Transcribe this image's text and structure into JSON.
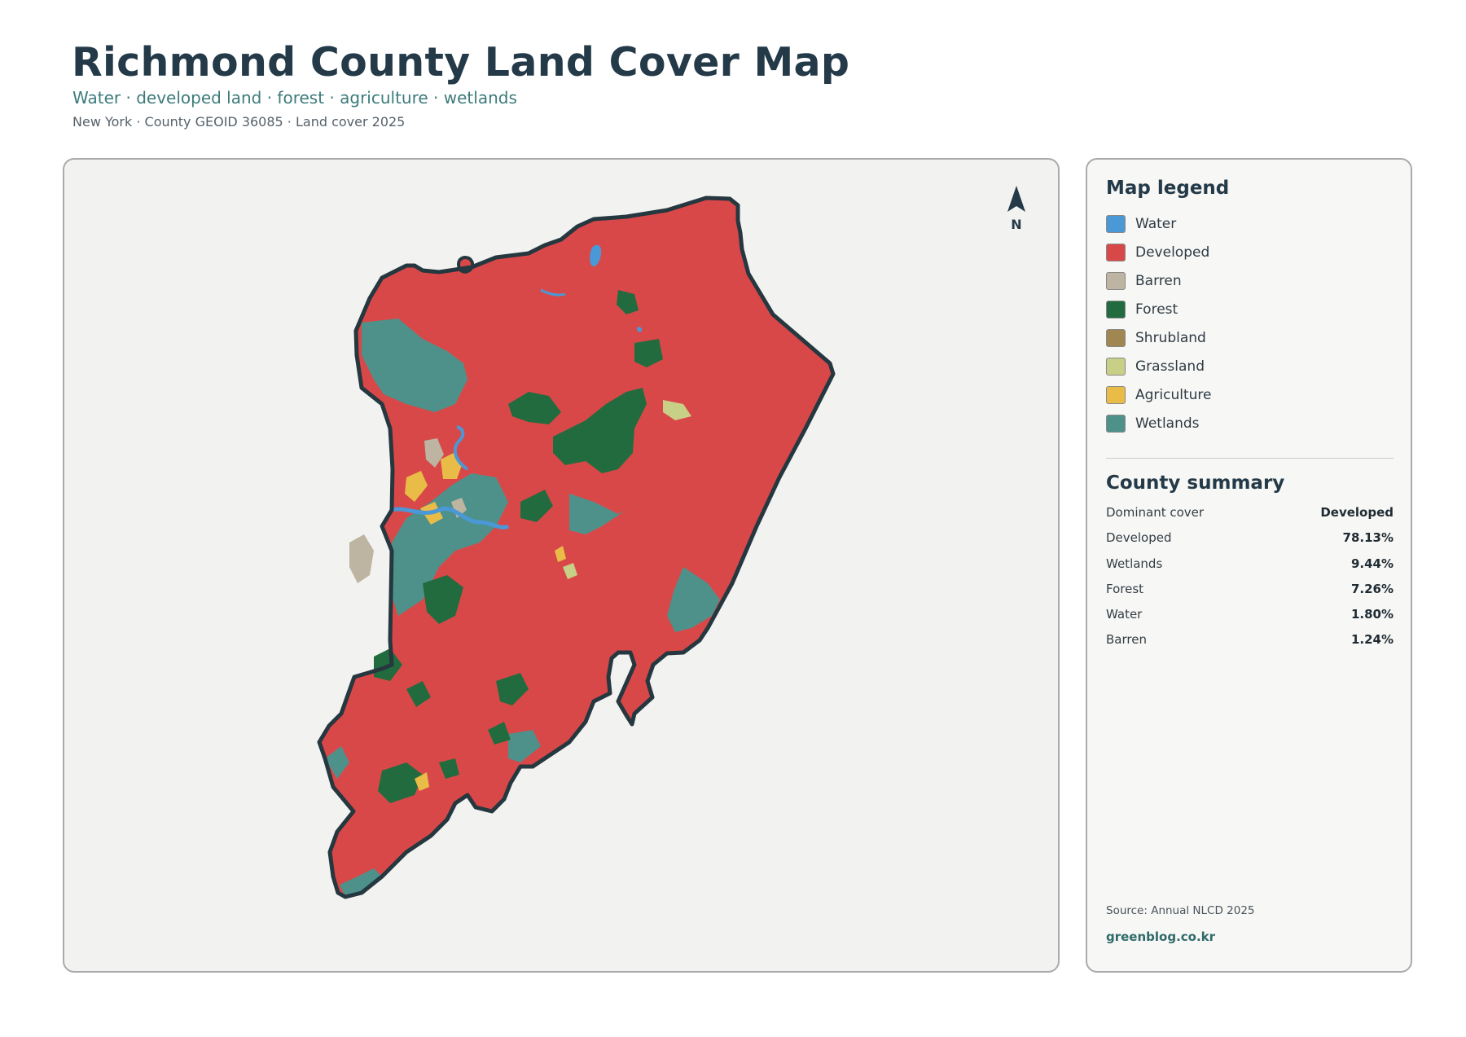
{
  "header": {
    "title": "Richmond County Land Cover Map",
    "subtitle": "Water · developed land · forest · agriculture · wetlands",
    "meta": "New York · County GEOID 36085 · Land cover 2025"
  },
  "map": {
    "north_label": "N",
    "colors": {
      "developed": "#d94848",
      "outline": "#25373f",
      "water": "#4a98d6",
      "barren": "#bdb4a2",
      "forest": "#226b3e",
      "shrubland": "#a08650",
      "grassland": "#c8cf86",
      "agriculture": "#e9bc48",
      "wetlands": "#4e918a"
    }
  },
  "legend": {
    "title": "Map legend",
    "items": [
      {
        "label": "Water",
        "color": "#4a98d6"
      },
      {
        "label": "Developed",
        "color": "#d94848"
      },
      {
        "label": "Barren",
        "color": "#bdb4a2"
      },
      {
        "label": "Forest",
        "color": "#226b3e"
      },
      {
        "label": "Shrubland",
        "color": "#a08650"
      },
      {
        "label": "Grassland",
        "color": "#c8cf86"
      },
      {
        "label": "Agriculture",
        "color": "#e9bc48"
      },
      {
        "label": "Wetlands",
        "color": "#4e918a"
      }
    ]
  },
  "summary": {
    "title": "County summary",
    "rows": [
      {
        "label": "Dominant cover",
        "value": "Developed"
      },
      {
        "label": "Developed",
        "value": "78.13%"
      },
      {
        "label": "Wetlands",
        "value": "9.44%"
      },
      {
        "label": "Forest",
        "value": "7.26%"
      },
      {
        "label": "Water",
        "value": "1.80%"
      },
      {
        "label": "Barren",
        "value": "1.24%"
      }
    ]
  },
  "footer": {
    "source": "Source: Annual NLCD 2025",
    "brand": "greenblog.co.kr"
  }
}
